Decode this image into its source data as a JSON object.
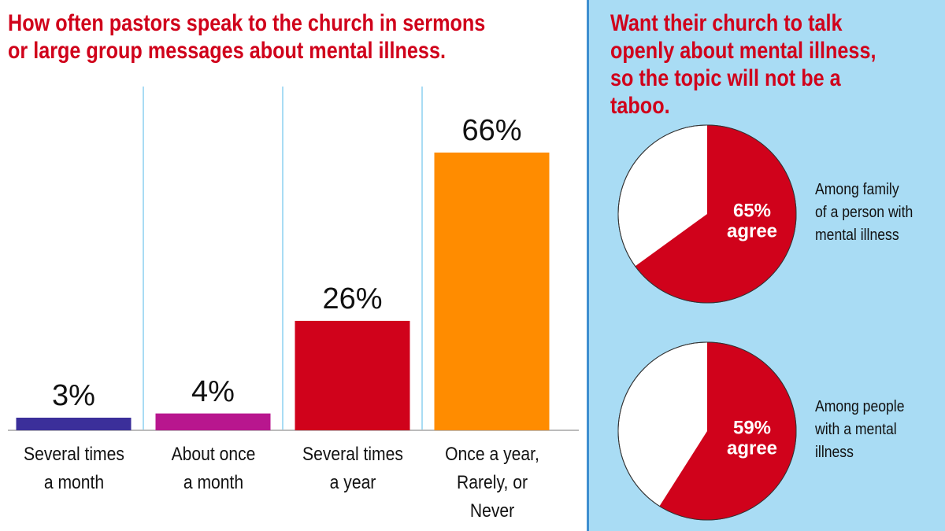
{
  "chart_data": [
    {
      "type": "bar",
      "title": "How often pastors speak to the church in sermons\nor large group messages about mental illness.",
      "categories": [
        "Several times\na month",
        "About once\na month",
        "Several times\na year",
        "Once a year,\nRarely, or\nNever"
      ],
      "values": [
        3,
        4,
        26,
        66
      ],
      "value_labels": [
        "3%",
        "4%",
        "26%",
        "66%"
      ],
      "colors": [
        "#3b2f9a",
        "#b8168e",
        "#d0021b",
        "#ff8c00"
      ]
    },
    {
      "type": "pie",
      "title": "Want their church to talk\nopenly about mental illness,\nso the topic will not be a taboo.",
      "categories": [
        "Among family\nof a person with\nmental illness",
        "Among people\nwith a mental\nillness"
      ],
      "values": [
        65,
        59
      ],
      "value_labels": [
        "65%\nagree",
        "59%\nagree"
      ],
      "color": "#d0021b",
      "rest_color": "#ffffff"
    }
  ]
}
